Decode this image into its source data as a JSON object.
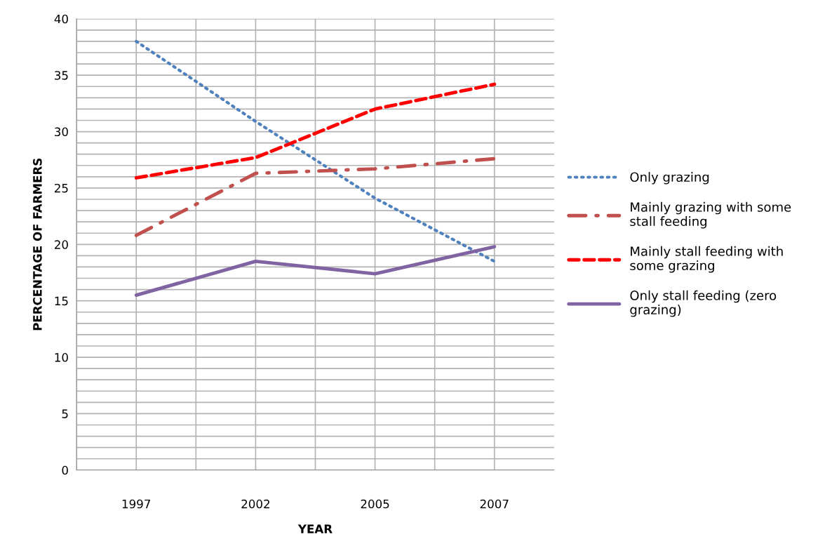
{
  "chart_data": {
    "type": "line",
    "xlabel": "YEAR",
    "ylabel": "PERCENTAGE OF FARMERS",
    "categories": [
      "1997",
      "2002",
      "2005",
      "2007"
    ],
    "series": [
      {
        "name": "Only grazing",
        "color": "#4f81bd",
        "line_style": "dotted",
        "values": [
          38,
          30.9,
          24.1,
          18.5
        ]
      },
      {
        "name": "Mainly grazing with some stall feeding",
        "color": "#c0504d",
        "line_style": "dashdot",
        "values": [
          20.8,
          26.3,
          26.7,
          27.6
        ]
      },
      {
        "name": "Mainly stall feeding with some grazing",
        "color": "#ff0000",
        "line_style": "dashed",
        "values": [
          25.9,
          27.7,
          32.0,
          34.2
        ]
      },
      {
        "name": "Only stall feeding (zero grazing)",
        "color": "#8064a2",
        "line_style": "solid",
        "values": [
          15.5,
          18.5,
          17.4,
          19.8
        ]
      }
    ],
    "ylim": [
      0,
      40
    ],
    "yticks": [
      0,
      {
        "value": 1,
        "label": null
      },
      {
        "value": 2,
        "label": null
      },
      {
        "value": 3,
        "label": null
      },
      {
        "value": 4,
        "label": null
      },
      5,
      {
        "value": 6,
        "label": null
      },
      {
        "value": 7,
        "label": null
      },
      {
        "value": 8,
        "label": null
      },
      {
        "value": 9,
        "label": null
      },
      10,
      {
        "value": 11,
        "label": null
      },
      {
        "value": 12,
        "label": null
      },
      {
        "value": 13,
        "label": null
      },
      {
        "value": 14,
        "label": null
      },
      15,
      {
        "value": 16,
        "label": null
      },
      {
        "value": 17,
        "label": null
      },
      {
        "value": 18,
        "label": null
      },
      {
        "value": 19,
        "label": null
      },
      20,
      {
        "value": 21,
        "label": null
      },
      {
        "value": 22,
        "label": null
      },
      {
        "value": 23,
        "label": null
      },
      {
        "value": 24,
        "label": null
      },
      25,
      {
        "value": 26,
        "label": null
      },
      {
        "value": 27,
        "label": null
      },
      {
        "value": 28,
        "label": null
      },
      {
        "value": 29,
        "label": null
      },
      30,
      {
        "value": 31,
        "label": null
      },
      {
        "value": 32,
        "label": null
      },
      {
        "value": 33,
        "label": null
      },
      {
        "value": 34,
        "label": null
      },
      35,
      {
        "value": 36,
        "label": null
      },
      {
        "value": 37,
        "label": null
      },
      {
        "value": 38,
        "label": null
      },
      {
        "value": 39,
        "label": null
      },
      40
    ],
    "grid": true,
    "legend": "right",
    "marker": "none"
  }
}
